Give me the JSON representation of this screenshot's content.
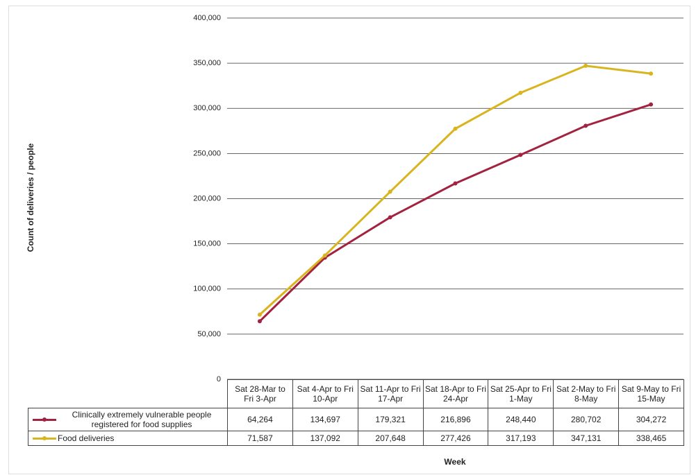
{
  "chart_data": {
    "type": "line",
    "y_label": "Count of deliveries / people",
    "x_label": "Week",
    "categories": [
      "Sat 28-Mar to Fri 3-Apr",
      "Sat 4-Apr to Fri 10-Apr",
      "Sat 11-Apr to Fri 17-Apr",
      "Sat 18-Apr to Fri 24-Apr",
      "Sat 25-Apr to Fri 1-May",
      "Sat 2-May to Fri 8-May",
      "Sat 9-May to Fri 15-May"
    ],
    "series": [
      {
        "name": "Clinically extremely vulnerable people registered for food supplies",
        "color": "#a3223f",
        "values": [
          64264,
          134697,
          179321,
          216896,
          248440,
          280702,
          304272
        ],
        "value_labels": [
          "64,264",
          "134,697",
          "179,321",
          "216,896",
          "248,440",
          "280,702",
          "304,272"
        ]
      },
      {
        "name": "Food deliveries",
        "color": "#d8b51e",
        "values": [
          71587,
          137092,
          207648,
          277426,
          317193,
          347131,
          338465
        ],
        "value_labels": [
          "71,587",
          "137,092",
          "207,648",
          "277,426",
          "317,193",
          "347,131",
          "338,465"
        ]
      }
    ],
    "ylim": [
      0,
      400000
    ],
    "yticks": [
      0,
      {
        "value": 50000,
        "label": "50,000"
      },
      {
        "value": 100000,
        "label": "100,000"
      },
      {
        "value": 150000,
        "label": "150,000"
      },
      {
        "value": 200000,
        "label": "200,000"
      },
      {
        "value": 250000,
        "label": "250,000"
      },
      {
        "value": 300000,
        "label": "300,000"
      },
      {
        "value": 350000,
        "label": "350,000"
      },
      {
        "value": 400000,
        "label": "400,000"
      }
    ],
    "grid": true
  }
}
